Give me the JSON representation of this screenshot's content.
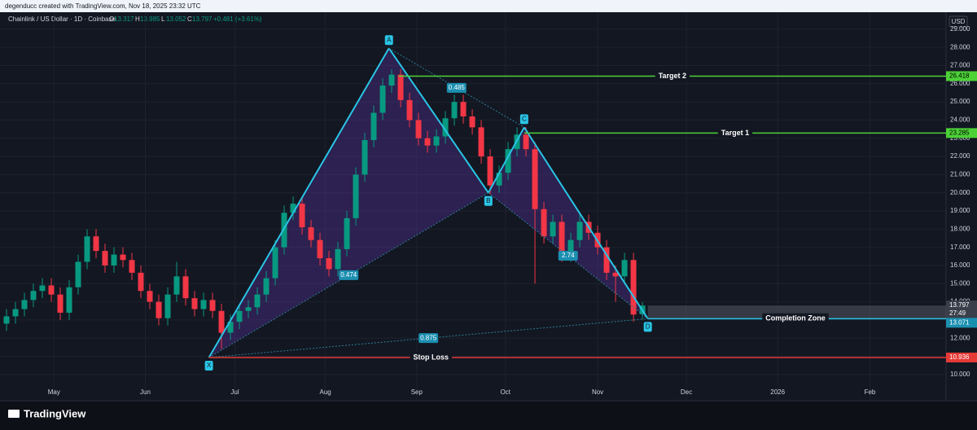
{
  "chart_data": {
    "type": "candlestick",
    "attribution": "degenducc created with TradingView.com, Nov 18, 2025 23:32 UTC",
    "title": "Chainlink / US Dollar · 1D · Coinbase",
    "ohlc_labels": [
      "O",
      "H",
      "L",
      "C"
    ],
    "change_label": "+0.481 (+3.61%)",
    "currency": "USD",
    "brand": "TradingView",
    "countdown": "27:49",
    "up_color": "#089981",
    "down_color": "#f23645",
    "open": [
      12.8,
      13.2,
      13.6,
      14.1,
      14.6,
      14.9,
      14.4,
      13.4,
      14.8,
      16.2,
      17.6,
      16.8,
      16.0,
      16.6,
      16.3,
      15.6,
      14.6,
      14.0,
      13.1,
      14.4,
      15.4,
      14.2,
      13.6,
      14.1,
      13.5,
      12.3,
      12.9,
      13.5,
      13.7,
      14.4,
      15.3,
      17.0,
      18.9,
      19.4,
      18.1,
      17.4,
      16.4,
      15.8,
      16.9,
      18.6,
      21.0,
      22.9,
      24.4,
      25.9,
      26.5,
      25.1,
      24.0,
      23.0,
      22.6,
      23.1,
      24.1,
      25.0,
      24.2,
      23.6,
      22.0,
      20.4,
      21.1,
      22.4,
      23.2,
      22.4,
      19.1,
      17.6,
      18.4,
      16.6,
      17.4,
      18.4,
      17.8,
      17.0,
      15.6,
      15.4,
      16.3,
      13.317
    ],
    "high": [
      13.6,
      14.0,
      14.5,
      15.0,
      15.3,
      15.3,
      14.8,
      15.2,
      16.6,
      18.0,
      18.0,
      17.2,
      17.0,
      17.0,
      16.7,
      16.0,
      15.0,
      14.4,
      14.8,
      16.2,
      15.8,
      14.6,
      14.5,
      14.5,
      13.9,
      13.3,
      13.9,
      14.1,
      14.8,
      15.7,
      17.4,
      19.3,
      19.8,
      19.8,
      18.5,
      17.8,
      16.8,
      17.3,
      19.0,
      21.4,
      23.3,
      24.8,
      26.3,
      26.8,
      26.8,
      25.5,
      24.4,
      23.4,
      23.5,
      24.5,
      25.4,
      25.4,
      24.6,
      24.0,
      22.4,
      21.5,
      22.8,
      23.6,
      23.6,
      22.8,
      19.5,
      18.8,
      18.8,
      17.8,
      18.8,
      18.8,
      18.2,
      17.4,
      16.0,
      16.7,
      16.7,
      13.985
    ],
    "low": [
      12.4,
      12.8,
      13.2,
      13.7,
      14.2,
      14.0,
      13.0,
      13.0,
      14.4,
      15.8,
      16.4,
      15.6,
      15.6,
      15.9,
      15.2,
      14.2,
      13.6,
      12.7,
      12.7,
      14.0,
      13.8,
      13.2,
      13.2,
      13.1,
      11.4,
      11.9,
      12.5,
      13.1,
      13.3,
      14.0,
      14.9,
      16.6,
      18.5,
      17.7,
      17.0,
      16.0,
      15.4,
      15.4,
      16.5,
      18.2,
      20.6,
      22.5,
      24.0,
      25.5,
      24.7,
      23.6,
      22.6,
      22.2,
      22.2,
      22.7,
      23.7,
      23.8,
      23.2,
      21.6,
      19.9,
      20.0,
      20.7,
      22.0,
      22.0,
      15.0,
      17.2,
      17.2,
      16.2,
      16.2,
      17.0,
      17.4,
      16.6,
      15.2,
      14.0,
      15.0,
      12.9,
      13.052
    ],
    "close": [
      13.2,
      13.6,
      14.1,
      14.6,
      14.9,
      14.4,
      13.4,
      14.8,
      16.2,
      17.6,
      16.8,
      16.0,
      16.6,
      16.3,
      15.6,
      14.6,
      14.0,
      13.1,
      14.4,
      15.4,
      14.2,
      13.6,
      14.1,
      13.5,
      12.3,
      12.9,
      13.5,
      13.7,
      14.4,
      15.3,
      17.0,
      18.9,
      19.4,
      18.1,
      17.4,
      16.4,
      15.8,
      16.9,
      18.6,
      21.0,
      22.9,
      24.4,
      25.9,
      26.5,
      25.1,
      24.0,
      23.0,
      22.6,
      23.1,
      24.1,
      25.0,
      24.2,
      23.6,
      22.0,
      20.4,
      21.1,
      22.4,
      23.2,
      22.4,
      19.1,
      17.6,
      18.4,
      16.6,
      17.4,
      18.4,
      17.8,
      17.0,
      15.6,
      15.4,
      16.3,
      13.3,
      13.797
    ],
    "xlim": [
      -0.727,
      104.9
    ],
    "xticks": [
      {
        "value": 5.3,
        "label": "May"
      },
      {
        "value": 15.5,
        "label": "Jun"
      },
      {
        "value": 25.5,
        "label": "Jul"
      },
      {
        "value": 35.6,
        "label": "Aug"
      },
      {
        "value": 45.8,
        "label": "Sep"
      },
      {
        "value": 55.7,
        "label": "Oct"
      },
      {
        "value": 66,
        "label": "Nov"
      },
      {
        "value": 75.9,
        "label": "Dec"
      },
      {
        "value": 86.1,
        "label": "2026"
      },
      {
        "value": 96.4,
        "label": "Feb"
      }
    ],
    "ylim": [
      8.65,
      29.8
    ],
    "yticks": [
      {
        "value": 10,
        "label": "10.000"
      },
      {
        "value": 11,
        "label": "11.000"
      },
      {
        "value": 12,
        "label": "12.000"
      },
      {
        "value": 13,
        "label": "13.000"
      },
      {
        "value": 14,
        "label": "14.000"
      },
      {
        "value": 15,
        "label": "15.000"
      },
      {
        "value": 16,
        "label": "16.000"
      },
      {
        "value": 17,
        "label": "17.000"
      },
      {
        "value": 18,
        "label": "18.000"
      },
      {
        "value": 19,
        "label": "19.000"
      },
      {
        "value": 20,
        "label": "20.000"
      },
      {
        "value": 21,
        "label": "21.000"
      },
      {
        "value": 22,
        "label": "22.000"
      },
      {
        "value": 23,
        "label": "23.000"
      },
      {
        "value": 24,
        "label": "24.000"
      },
      {
        "value": 25,
        "label": "25.000"
      },
      {
        "value": 26,
        "label": "26.000"
      },
      {
        "value": 27,
        "label": "27.000"
      },
      {
        "value": 28,
        "label": "28.000"
      },
      {
        "value": 29,
        "label": "29.000"
      }
    ],
    "grid": true,
    "pattern": {
      "points": [
        {
          "label": "X",
          "x": 22.6,
          "y": 10.936
        },
        {
          "label": "A",
          "x": 42.7,
          "y": 27.95
        },
        {
          "label": "B",
          "x": 53.8,
          "y": 20.0
        },
        {
          "label": "C",
          "x": 57.8,
          "y": 23.6
        },
        {
          "label": "D",
          "x": 71.6,
          "y": 13.071
        }
      ],
      "ratios": [
        0.474,
        0.485,
        2.74,
        0.875
      ]
    },
    "levels": [
      {
        "name": "Target 2",
        "value": 26.418,
        "color": "#4cd137"
      },
      {
        "name": "Target 1",
        "value": 23.285,
        "color": "#4cd137"
      },
      {
        "name": "Stop Loss",
        "value": 10.936,
        "color": "#e53935"
      }
    ],
    "zone": {
      "name": "Completion Zone",
      "low": 13.071,
      "high": 13.797
    }
  }
}
